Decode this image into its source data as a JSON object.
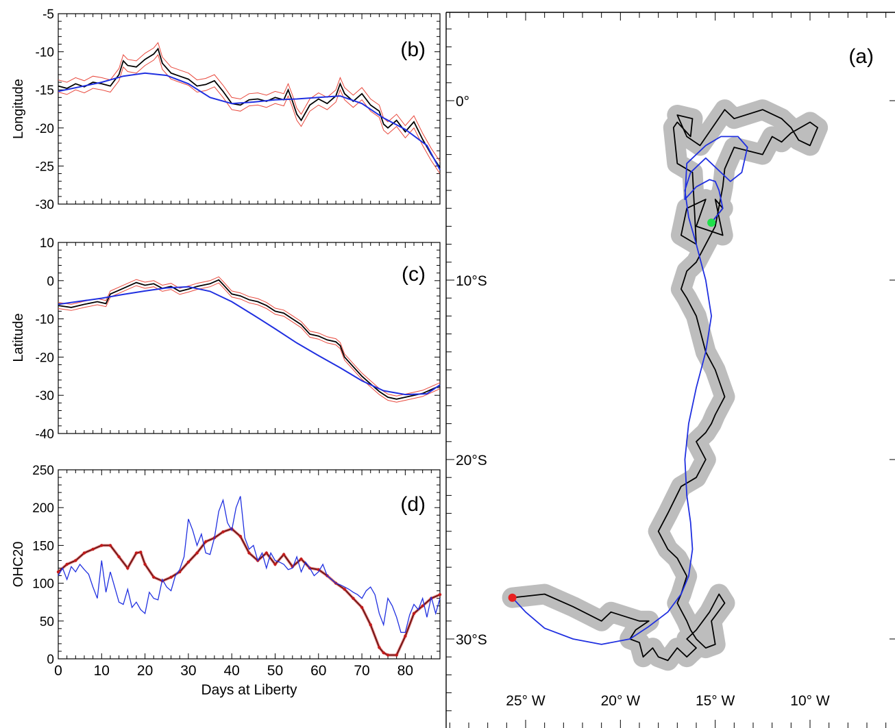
{
  "chart_data": [
    {
      "panel": "(b)",
      "type": "line",
      "xlabel": "",
      "ylabel": "Longitude",
      "xlim": [
        0,
        88
      ],
      "ylim": [
        -30,
        -5
      ],
      "xticks": [
        0,
        10,
        20,
        30,
        40,
        50,
        60,
        70,
        80
      ],
      "yticks": [
        -30,
        -25,
        -20,
        -15,
        -10,
        -5
      ],
      "series": [
        {
          "color": "#000000",
          "envelope_color": "#e8463a",
          "envelope_halfwidth": 0.8,
          "x": [
            0,
            2,
            4,
            6,
            8,
            10,
            12,
            14,
            15,
            16,
            18,
            20,
            22,
            23,
            24,
            26,
            28,
            30,
            32,
            34,
            36,
            38,
            40,
            42,
            44,
            46,
            48,
            50,
            52,
            53,
            54,
            55,
            56,
            58,
            60,
            62,
            64,
            65,
            66,
            68,
            70,
            72,
            74,
            75,
            76,
            78,
            80,
            82,
            84,
            86,
            88
          ],
          "y": [
            -14.5,
            -14.8,
            -14.2,
            -14.6,
            -14.0,
            -14.2,
            -14.5,
            -13.0,
            -11.2,
            -11.8,
            -12.0,
            -11.0,
            -10.3,
            -9.6,
            -11.5,
            -12.8,
            -13.2,
            -13.6,
            -14.5,
            -14.3,
            -13.8,
            -15.2,
            -16.8,
            -17.0,
            -16.3,
            -16.2,
            -16.5,
            -16.0,
            -16.3,
            -15.0,
            -16.5,
            -18.2,
            -19.0,
            -17.0,
            -16.2,
            -16.8,
            -15.8,
            -14.2,
            -15.5,
            -16.5,
            -15.5,
            -17.0,
            -17.8,
            -19.5,
            -20.0,
            -19.0,
            -20.5,
            -19.2,
            -21.5,
            -23.5,
            -25.2
          ]
        },
        {
          "color": "#1f2fe0",
          "x": [
            0,
            5,
            10,
            15,
            20,
            25,
            30,
            35,
            40,
            45,
            50,
            55,
            60,
            65,
            70,
            75,
            80,
            85,
            88
          ],
          "y": [
            -15.2,
            -14.6,
            -14.0,
            -13.2,
            -12.8,
            -13.1,
            -14.2,
            -16.0,
            -16.8,
            -16.6,
            -16.3,
            -16.2,
            -16.0,
            -15.8,
            -16.8,
            -18.7,
            -20.2,
            -22.3,
            -25.5
          ]
        }
      ]
    },
    {
      "panel": "(c)",
      "type": "line",
      "xlabel": "",
      "ylabel": "Latitude",
      "xlim": [
        0,
        88
      ],
      "ylim": [
        -40,
        10
      ],
      "xticks": [
        0,
        10,
        20,
        30,
        40,
        50,
        60,
        70,
        80
      ],
      "yticks": [
        -40,
        -30,
        -20,
        -10,
        0,
        10
      ],
      "series": [
        {
          "color": "#000000",
          "envelope_color": "#e8463a",
          "envelope_halfwidth": 0.8,
          "x": [
            0,
            3,
            6,
            9,
            11,
            12,
            14,
            16,
            18,
            20,
            22,
            24,
            26,
            28,
            30,
            32,
            35,
            37,
            38,
            40,
            42,
            44,
            46,
            48,
            50,
            52,
            54,
            56,
            58,
            60,
            62,
            64,
            65,
            66,
            68,
            70,
            72,
            74,
            76,
            78,
            80,
            82,
            84,
            86,
            88
          ],
          "y": [
            -6.5,
            -7.0,
            -6.2,
            -5.5,
            -6.0,
            -3.5,
            -2.5,
            -1.5,
            -0.5,
            -1.2,
            -0.8,
            -2.0,
            -1.5,
            -2.8,
            -2.2,
            -1.5,
            -0.8,
            0.2,
            -1.0,
            -3.5,
            -4.0,
            -5.0,
            -5.5,
            -6.5,
            -8.0,
            -8.5,
            -10.0,
            -11.5,
            -14.0,
            -14.5,
            -15.5,
            -16.0,
            -17.0,
            -20.0,
            -22.5,
            -25.0,
            -27.0,
            -29.0,
            -30.5,
            -31.0,
            -30.5,
            -30.0,
            -29.5,
            -28.5,
            -27.5
          ]
        },
        {
          "color": "#1f2fe0",
          "x": [
            0,
            5,
            10,
            15,
            20,
            25,
            30,
            35,
            40,
            45,
            50,
            55,
            60,
            65,
            70,
            75,
            80,
            85,
            88
          ],
          "y": [
            -6.2,
            -5.4,
            -4.6,
            -3.6,
            -2.7,
            -1.9,
            -1.6,
            -2.8,
            -5.5,
            -9.0,
            -12.6,
            -16.3,
            -19.6,
            -22.8,
            -26.2,
            -28.8,
            -29.8,
            -29.6,
            -27.3
          ]
        }
      ]
    },
    {
      "panel": "(d)",
      "type": "line",
      "xlabel": "Days at Liberty",
      "ylabel": "OHC20",
      "xlim": [
        0,
        88
      ],
      "ylim": [
        0,
        250
      ],
      "xticks": [
        0,
        10,
        20,
        30,
        40,
        50,
        60,
        70,
        80
      ],
      "yticks": [
        0,
        50,
        100,
        150,
        200,
        250
      ],
      "series": [
        {
          "color": "#000000",
          "marker_color": "#c41a1a",
          "x": [
            0,
            2,
            4,
            6,
            8,
            10,
            12,
            14,
            16,
            18,
            19,
            20,
            22,
            24,
            26,
            28,
            30,
            32,
            34,
            36,
            38,
            40,
            42,
            44,
            46,
            48,
            50,
            52,
            54,
            56,
            58,
            60,
            62,
            64,
            66,
            68,
            70,
            72,
            74,
            75,
            76,
            78,
            80,
            82,
            84,
            86,
            88
          ],
          "y": [
            115,
            125,
            130,
            140,
            145,
            150,
            150,
            135,
            120,
            140,
            141,
            125,
            108,
            103,
            108,
            115,
            128,
            140,
            155,
            160,
            168,
            172,
            162,
            140,
            130,
            140,
            125,
            138,
            122,
            132,
            120,
            118,
            110,
            100,
            92,
            80,
            68,
            45,
            15,
            8,
            5,
            5,
            30,
            60,
            70,
            80,
            85
          ]
        },
        {
          "color": "#1f2fe0",
          "x": [
            0,
            1,
            2,
            3,
            4,
            5,
            6,
            7,
            8,
            9,
            10,
            11,
            12,
            13,
            14,
            15,
            16,
            17,
            18,
            19,
            20,
            21,
            22,
            23,
            24,
            25,
            26,
            27,
            28,
            29,
            30,
            31,
            32,
            33,
            34,
            35,
            36,
            37,
            38,
            39,
            40,
            41,
            42,
            43,
            44,
            45,
            46,
            47,
            48,
            49,
            50,
            51,
            52,
            53,
            54,
            55,
            56,
            57,
            58,
            59,
            60,
            61,
            62,
            63,
            64,
            65,
            66,
            67,
            68,
            69,
            70,
            71,
            72,
            73,
            74,
            75,
            76,
            77,
            78,
            79,
            80,
            81,
            82,
            83,
            84,
            85,
            86,
            87,
            88
          ],
          "y": [
            110,
            120,
            105,
            122,
            115,
            125,
            118,
            112,
            95,
            80,
            130,
            88,
            115,
            95,
            75,
            72,
            92,
            68,
            75,
            65,
            60,
            88,
            80,
            78,
            105,
            95,
            90,
            110,
            118,
            135,
            185,
            170,
            150,
            165,
            140,
            138,
            160,
            195,
            210,
            180,
            170,
            200,
            215,
            160,
            145,
            150,
            130,
            140,
            120,
            140,
            130,
            128,
            125,
            118,
            120,
            135,
            115,
            128,
            120,
            110,
            115,
            125,
            110,
            105,
            100,
            98,
            95,
            92,
            88,
            85,
            80,
            90,
            95,
            85,
            60,
            45,
            80,
            70,
            55,
            35,
            35,
            58,
            72,
            65,
            80,
            55,
            82,
            60,
            80
          ]
        }
      ]
    },
    {
      "panel": "(a)",
      "type": "line",
      "xlabel": "",
      "ylabel": "",
      "xticklabels": [
        "25° W",
        "20° W",
        "15° W",
        "10° W"
      ],
      "xticks": [
        -25,
        -20,
        -15,
        -10
      ],
      "yticklabels": [
        "0°",
        "10°S",
        "20°S",
        "30°S"
      ],
      "yticks": [
        0,
        -10,
        -20,
        -30
      ],
      "xlim": [
        -30,
        -5
      ],
      "ylim": [
        -35,
        4
      ],
      "halo_color": "#bdbdbd",
      "start_point": {
        "lon": -15.2,
        "lat": -6.8,
        "color": "#1fe04a"
      },
      "end_point": {
        "lon": -25.7,
        "lat": -27.7,
        "color": "#e82020"
      },
      "series": [
        {
          "color": "#000000",
          "lon": [
            -15.2,
            -14.6,
            -15.0,
            -14.6,
            -16.0,
            -15.5,
            -16.5,
            -16.8,
            -16.0,
            -16.2,
            -17.0,
            -17.2,
            -17.0,
            -16.3,
            -16.2,
            -17.0,
            -16.5,
            -15.8,
            -14.5,
            -14.0,
            -12.5,
            -11.5,
            -11.0,
            -10.6,
            -10.0,
            -9.6,
            -10.0,
            -11.0,
            -11.5,
            -12.0,
            -12.5,
            -14.0,
            -14.5,
            -14.6,
            -15.0,
            -16.0,
            -16.5,
            -16.8,
            -16.5,
            -16.0,
            -15.5,
            -15.0,
            -14.5,
            -15.0,
            -15.2,
            -15.5,
            -16.0,
            -15.5,
            -16.0,
            -16.8,
            -17.5,
            -18.0,
            -17.5,
            -17.0,
            -16.5,
            -16.8,
            -17.0,
            -16.5,
            -16.3,
            -16.0,
            -15.5,
            -15.0,
            -15.2,
            -14.5,
            -14.8,
            -15.3,
            -16.0,
            -16.5,
            -16.0,
            -16.5,
            -17.0,
            -17.5,
            -18.0,
            -18.3,
            -18.8,
            -19.0,
            -19.5,
            -19.2,
            -18.5,
            -19.0,
            -20.5,
            -21.0,
            -22.5,
            -24.0,
            -25.7
          ],
          "lat": [
            -6.8,
            -6.0,
            -5.5,
            -7.5,
            -7.0,
            -5.5,
            -6.0,
            -7.5,
            -8.0,
            -4.0,
            -3.5,
            -1.5,
            -1.2,
            -2.0,
            -1.0,
            -0.8,
            -2.0,
            -2.5,
            -0.5,
            -1.0,
            -0.5,
            -1.0,
            -1.5,
            -2.2,
            -2.5,
            -1.5,
            -1.2,
            -1.8,
            -2.3,
            -2.0,
            -3.0,
            -2.6,
            -3.8,
            -4.8,
            -7.0,
            -9.0,
            -9.5,
            -10.5,
            -11.0,
            -12.0,
            -14.0,
            -15.0,
            -16.5,
            -17.5,
            -18.0,
            -18.5,
            -19.0,
            -20.0,
            -21.0,
            -21.5,
            -23.0,
            -24.0,
            -25.0,
            -25.5,
            -26.5,
            -27.5,
            -28.0,
            -29.0,
            -29.5,
            -30.0,
            -30.5,
            -30.3,
            -29.0,
            -28.0,
            -27.5,
            -28.5,
            -29.5,
            -30.0,
            -30.5,
            -31.0,
            -30.5,
            -31.2,
            -31.0,
            -30.5,
            -31.0,
            -30.2,
            -30.0,
            -29.5,
            -29.0,
            -29.0,
            -28.5,
            -29.0,
            -28.2,
            -27.5,
            -27.7
          ]
        },
        {
          "color": "#1f2fe0",
          "lon": [
            -15.2,
            -14.6,
            -14.8,
            -15.0,
            -15.3,
            -16.0,
            -16.6,
            -16.5,
            -15.5,
            -14.7,
            -13.8,
            -13.3,
            -13.6,
            -14.2,
            -15.5,
            -16.3,
            -16.6,
            -16.4,
            -16.0,
            -15.5,
            -15.2,
            -15.5,
            -16.0,
            -16.4,
            -16.6,
            -16.5,
            -16.3,
            -16.2,
            -16.4,
            -16.8,
            -17.5,
            -18.5,
            -19.5,
            -21.0,
            -22.5,
            -24.0,
            -25.0,
            -25.7
          ],
          "lat": [
            -6.8,
            -6.0,
            -5.0,
            -4.5,
            -4.4,
            -4.8,
            -5.5,
            -3.5,
            -2.5,
            -2.0,
            -2.0,
            -2.6,
            -4.0,
            -4.5,
            -3.2,
            -4.0,
            -5.0,
            -6.5,
            -8.0,
            -10.0,
            -12.0,
            -14.0,
            -16.0,
            -18.0,
            -20.0,
            -22.0,
            -23.5,
            -25.0,
            -26.5,
            -27.5,
            -28.5,
            -29.3,
            -30.0,
            -30.3,
            -30.0,
            -29.4,
            -28.5,
            -27.7
          ]
        }
      ]
    }
  ],
  "panel_labels": {
    "a": "(a)",
    "b": "(b)",
    "c": "(c)",
    "d": "(d)"
  }
}
